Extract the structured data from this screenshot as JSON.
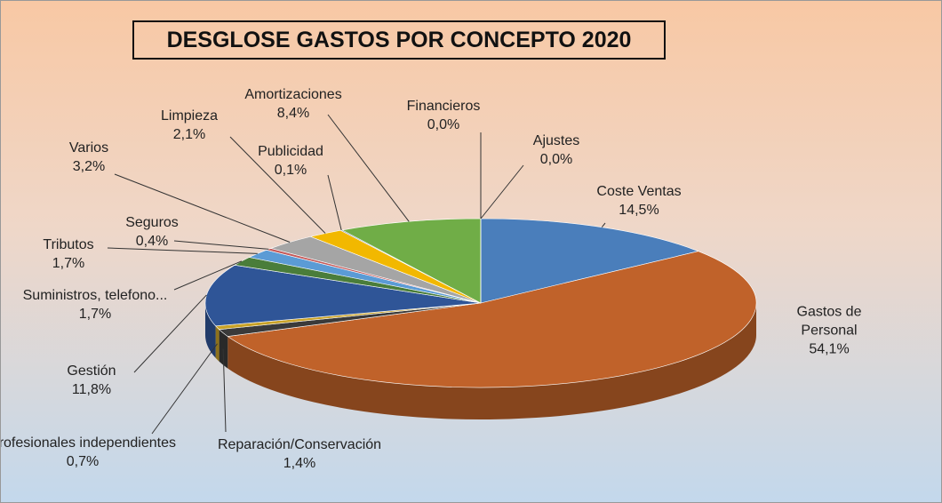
{
  "chart_data": {
    "type": "pie3d",
    "title": "DESGLOSE GASTOS POR CONCEPTO 2020",
    "categories": [
      "Coste Ventas",
      "Gastos de Personal",
      "Reparación/Conservación",
      "Profesionales independientes",
      "Gestión",
      "Suministros, telefono...",
      "Tributos",
      "Seguros",
      "Varios",
      "Limpieza",
      "Publicidad",
      "Amortizaciones",
      "Financieros",
      "Ajustes"
    ],
    "values": [
      14.5,
      54.1,
      1.4,
      0.7,
      11.8,
      1.7,
      1.7,
      0.4,
      3.2,
      2.1,
      0.1,
      8.4,
      0.0,
      0.0
    ],
    "value_labels": [
      "14,5%",
      "54,1%",
      "1,4%",
      "0,7%",
      "11,8%",
      "1,7%",
      "1,7%",
      "0,4%",
      "3,2%",
      "2,1%",
      "0,1%",
      "8,4%",
      "0,0%",
      "0,0%"
    ],
    "colors": [
      "#4a7ebb",
      "#c0622a",
      "#3a3a3a",
      "#c9a227",
      "#2f5597",
      "#4a7d3a",
      "#5b9bd5",
      "#c55a5a",
      "#a5a5a5",
      "#f2b800",
      "#1f3d7a",
      "#70ad47",
      "#7f3f1f",
      "#d9cfa8"
    ]
  }
}
